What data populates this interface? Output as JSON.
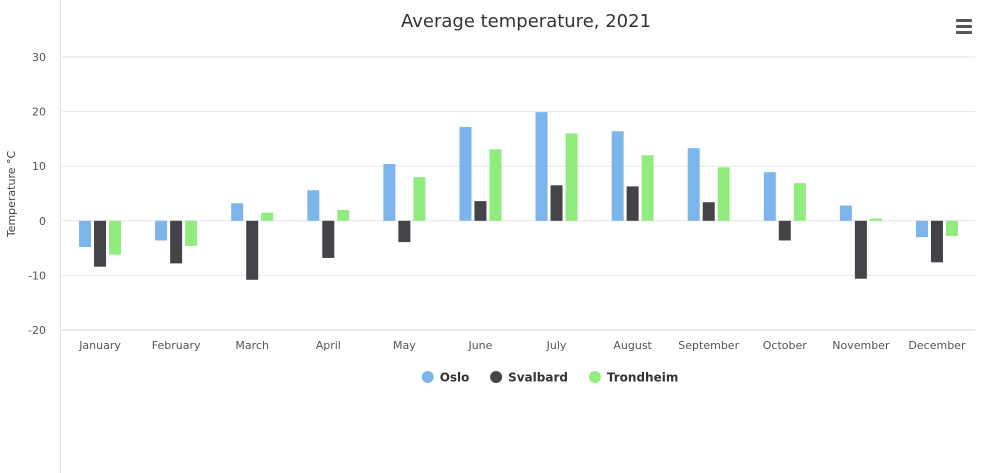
{
  "menu": {
    "icon": "hamburger-menu-icon"
  },
  "chart_data": {
    "type": "bar",
    "title": "Average temperature, 2021",
    "xlabel": "",
    "ylabel": "Temperature °C",
    "ylim": [
      -20,
      30
    ],
    "yticks": [
      -20,
      -10,
      0,
      10,
      20,
      30
    ],
    "grid": true,
    "legend": "bottom-center",
    "categories": [
      "January",
      "February",
      "March",
      "April",
      "May",
      "June",
      "July",
      "August",
      "September",
      "October",
      "November",
      "December"
    ],
    "series": [
      {
        "name": "Oslo",
        "color": "#7cb5ec",
        "values": [
          -4.8,
          -3.6,
          3.2,
          5.6,
          10.4,
          17.2,
          19.9,
          16.4,
          13.3,
          8.9,
          2.8,
          -3.0
        ]
      },
      {
        "name": "Svalbard",
        "color": "#434348",
        "values": [
          -8.4,
          -7.8,
          -10.8,
          -6.8,
          -3.9,
          3.6,
          6.5,
          6.3,
          3.4,
          -3.6,
          -10.6,
          -7.6
        ]
      },
      {
        "name": "Trondheim",
        "color": "#90ed7d",
        "values": [
          -6.2,
          -4.6,
          1.5,
          2.0,
          8.0,
          13.1,
          16.0,
          12.0,
          9.8,
          6.9,
          0.4,
          -2.8
        ]
      }
    ]
  }
}
